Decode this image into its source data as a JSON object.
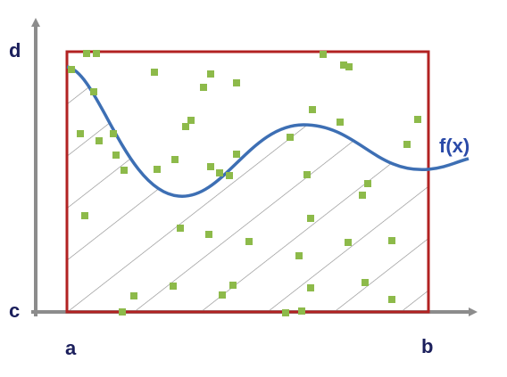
{
  "labels": {
    "d": "d",
    "c": "c",
    "a": "a",
    "b": "b",
    "fx": "f(x)"
  }
}
